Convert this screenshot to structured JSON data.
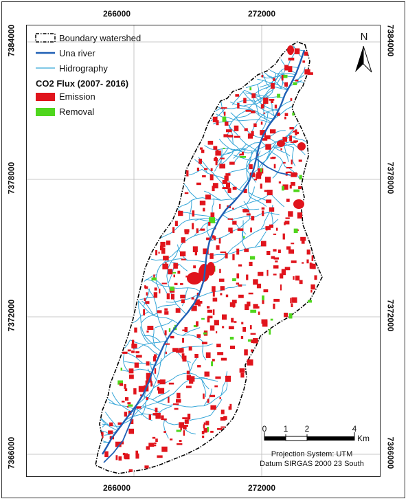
{
  "map": {
    "x_ticks": [
      "266000",
      "272000"
    ],
    "y_ticks": [
      "7384000",
      "7378000",
      "7372000",
      "7366000"
    ],
    "north_label": "N",
    "scale_labels": [
      "0",
      "1",
      "2",
      "4"
    ],
    "scale_unit": "Km",
    "projection_line1": "Projection System: UTM",
    "projection_line2": "Datum SIRGAS 2000 23 South",
    "colors": {
      "boundary": "#000000",
      "river": "#1f5fb4",
      "hydrography": "#35a6d8",
      "emission": "#e0141c",
      "removal": "#4fd61d"
    }
  },
  "legend": {
    "boundary_label": "Boundary watershed",
    "river_label": "Una river",
    "hydro_label": "Hidrography",
    "flux_title": "CO2 Flux (2007- 2016)",
    "emission_label": "Emission",
    "removal_label": "Removal"
  }
}
